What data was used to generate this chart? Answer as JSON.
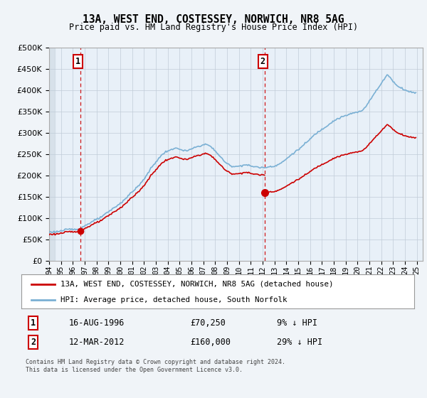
{
  "title": "13A, WEST END, COSTESSEY, NORWICH, NR8 5AG",
  "subtitle": "Price paid vs. HM Land Registry's House Price Index (HPI)",
  "legend_line1": "13A, WEST END, COSTESSEY, NORWICH, NR8 5AG (detached house)",
  "legend_line2": "HPI: Average price, detached house, South Norfolk",
  "annotation1_label": "1",
  "annotation1_date": "16-AUG-1996",
  "annotation1_price": "£70,250",
  "annotation1_hpi": "9% ↓ HPI",
  "annotation2_label": "2",
  "annotation2_date": "12-MAR-2012",
  "annotation2_price": "£160,000",
  "annotation2_hpi": "29% ↓ HPI",
  "footer": "Contains HM Land Registry data © Crown copyright and database right 2024.\nThis data is licensed under the Open Government Licence v3.0.",
  "hpi_color": "#7ab0d4",
  "sale_color": "#cc0000",
  "annotation_line_color": "#cc0000",
  "background_color": "#f0f4f8",
  "plot_bg_color": "#ddeeff",
  "hatch_bg_color": "#c8d8e8",
  "plot_white_color": "#e8f0f8",
  "ylim": [
    0,
    500000
  ],
  "yticks": [
    0,
    50000,
    100000,
    150000,
    200000,
    250000,
    300000,
    350000,
    400000,
    450000,
    500000
  ],
  "sale1_x": 1996.625,
  "sale1_y": 70250,
  "sale2_x": 2012.208,
  "sale2_y": 160000,
  "xmin": 1994.0,
  "xmax": 2025.5
}
